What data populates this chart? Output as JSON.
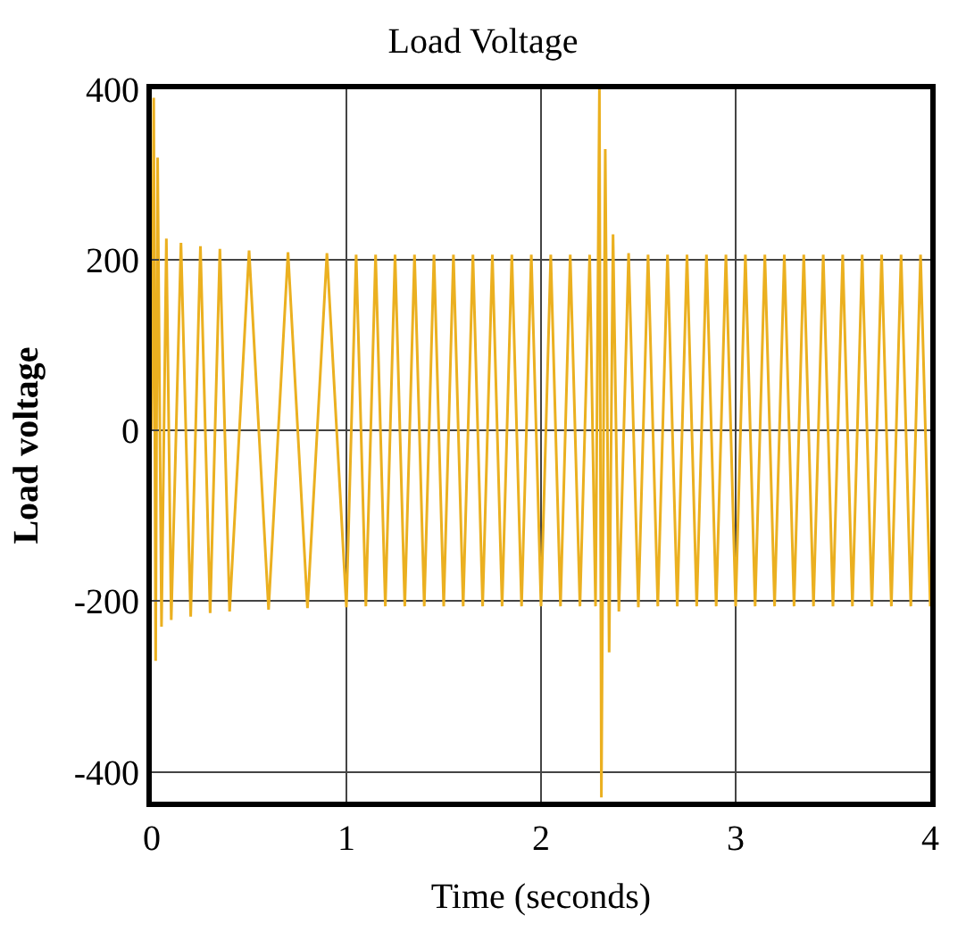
{
  "chart_data": {
    "type": "line",
    "title": "Load Voltage",
    "xlabel": "Time (seconds)",
    "ylabel": "Load voltage",
    "xlim": [
      0,
      4
    ],
    "xticks": [
      0,
      1,
      2,
      3,
      4
    ],
    "ylim": [
      -435,
      400
    ],
    "yticks": [
      -400,
      -200,
      0,
      200,
      400
    ],
    "grid": true,
    "marker": "none",
    "line_style": "solid",
    "series": [
      {
        "color": "#ebb020",
        "x": [
          0,
          0.01,
          0.02,
          0.03,
          0.05,
          0.075,
          0.1,
          0.15,
          0.2,
          0.25,
          0.3,
          0.35,
          0.4,
          0.5,
          0.6,
          0.7,
          0.8,
          0.9,
          1.0,
          1.05,
          1.1,
          1.15,
          1.2,
          1.25,
          1.3,
          1.35,
          1.4,
          1.45,
          1.5,
          1.55,
          1.6,
          1.65,
          1.7,
          1.75,
          1.8,
          1.85,
          1.9,
          1.95,
          2.0,
          2.05,
          2.1,
          2.15,
          2.2,
          2.25,
          2.28,
          2.3,
          2.31,
          2.33,
          2.35,
          2.37,
          2.4,
          2.45,
          2.5,
          2.55,
          2.6,
          2.65,
          2.7,
          2.75,
          2.8,
          2.85,
          2.9,
          2.95,
          3.0,
          3.05,
          3.1,
          3.15,
          3.2,
          3.25,
          3.3,
          3.35,
          3.4,
          3.45,
          3.5,
          3.55,
          3.6,
          3.65,
          3.7,
          3.75,
          3.8,
          3.85,
          3.9,
          3.95,
          4.0
        ],
        "values": [
          0,
          390,
          -270,
          320,
          -230,
          225,
          -222,
          220,
          -218,
          216,
          -214,
          213,
          -212,
          211,
          -210,
          209,
          -208,
          208,
          -207,
          206,
          -206,
          206,
          -206,
          206,
          -206,
          206,
          -206,
          206,
          -206,
          206,
          -206,
          206,
          -206,
          206,
          -206,
          206,
          -206,
          206,
          -206,
          206,
          -206,
          206,
          -206,
          206,
          -206,
          400,
          -430,
          330,
          -260,
          230,
          -212,
          208,
          -207,
          206,
          -206,
          206,
          -206,
          206,
          -206,
          206,
          -206,
          206,
          -206,
          206,
          -206,
          206,
          -206,
          206,
          -206,
          206,
          -206,
          206,
          -206,
          206,
          -206,
          206,
          -206,
          206,
          -206,
          206,
          -206,
          206,
          -206
        ]
      }
    ]
  }
}
